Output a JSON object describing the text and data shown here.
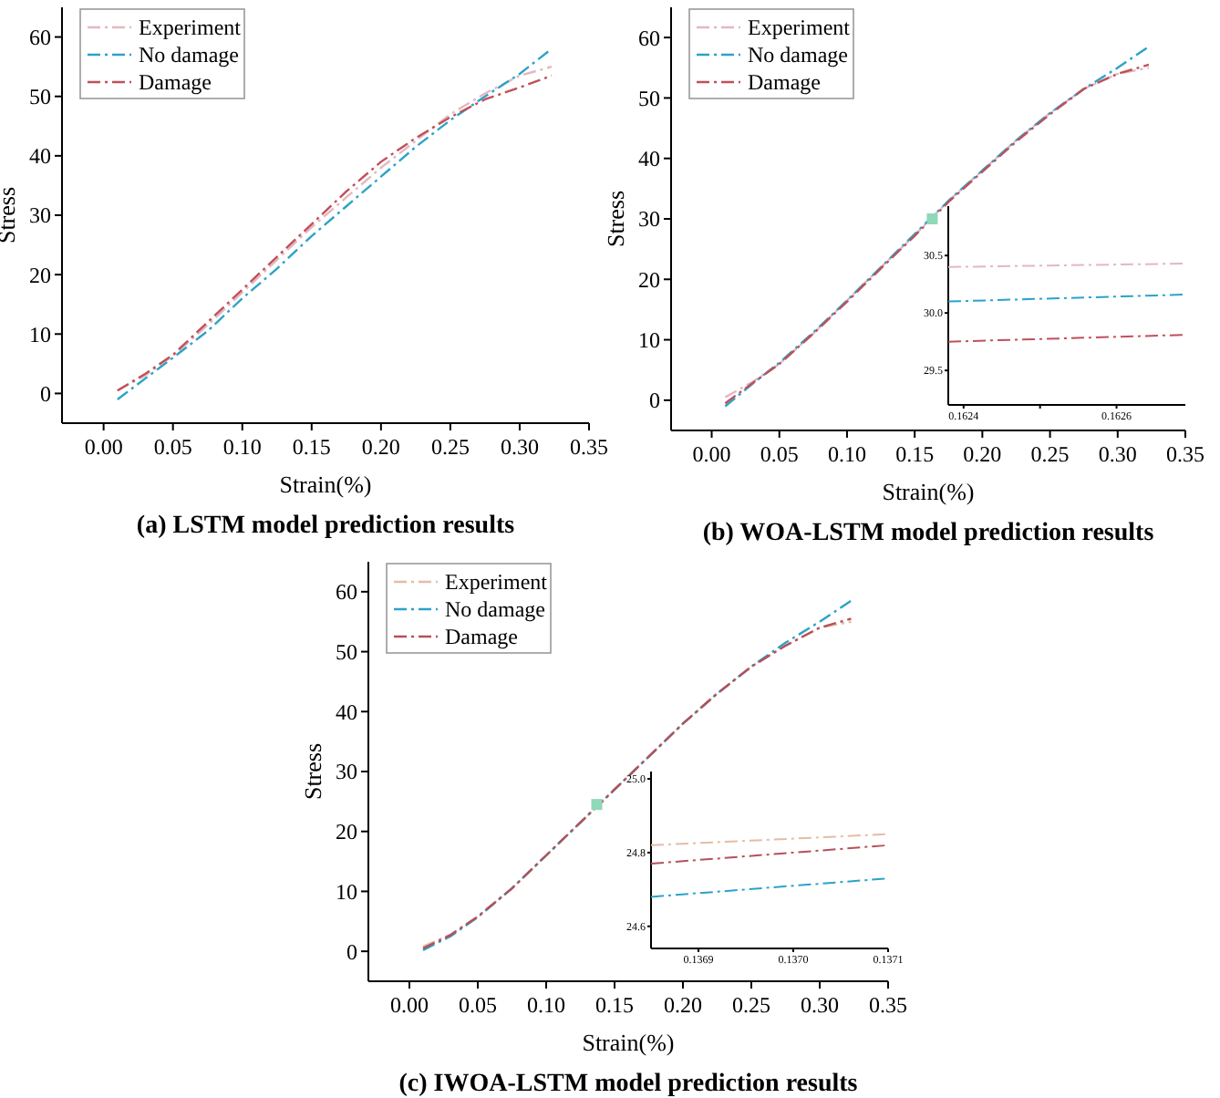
{
  "chart_data": [
    {
      "type": "line",
      "title": "(a) LSTM model prediction results",
      "xlabel": "Strain(%)",
      "ylabel": "Stress",
      "xlim": [
        -0.03,
        0.35
      ],
      "ylim": [
        -5,
        65
      ],
      "xticks": [
        {
          "value": 0,
          "label": "0.00"
        },
        {
          "value": 0.05,
          "label": "0.05"
        },
        {
          "value": 0.1,
          "label": "0.10"
        },
        {
          "value": 0.15,
          "label": "0.15"
        },
        {
          "value": 0.2,
          "label": "0.20"
        },
        {
          "value": 0.25,
          "label": "0.25"
        },
        {
          "value": 0.3,
          "label": "0.30"
        },
        {
          "value": 0.35,
          "label": "0.35"
        }
      ],
      "yticks": [
        0,
        10,
        20,
        30,
        40,
        50,
        60
      ],
      "legend": "top left",
      "line_style": "dashed",
      "grid": false,
      "x": [
        0.01,
        0.03,
        0.05,
        0.075,
        0.1,
        0.125,
        0.15,
        0.175,
        0.2,
        0.225,
        0.25,
        0.275,
        0.3,
        0.323
      ],
      "series": [
        {
          "name": "Experiment",
          "color": "#e3b8c0",
          "values": [
            0.5,
            3,
            6.3,
            11.5,
            17,
            22.5,
            28,
            33,
            38,
            42.5,
            47,
            50.5,
            53.5,
            55
          ]
        },
        {
          "name": "No damage",
          "color": "#2ba3c8",
          "values": [
            -1,
            2.5,
            6,
            10.5,
            16,
            21,
            26.5,
            31.5,
            36.5,
            41.5,
            46,
            50,
            53.8,
            58
          ]
        },
        {
          "name": "Damage",
          "color": "#c0505a",
          "values": [
            0.5,
            3.3,
            6.5,
            12,
            17.5,
            23,
            28.5,
            34,
            39,
            43,
            46.5,
            49.5,
            51.5,
            53.5
          ]
        }
      ]
    },
    {
      "type": "line",
      "title": "(b) WOA-LSTM model prediction results",
      "xlabel": "Strain(%)",
      "ylabel": "Stress",
      "xlim": [
        -0.03,
        0.35
      ],
      "ylim": [
        -5,
        65
      ],
      "xticks": [
        {
          "value": 0,
          "label": "0.00"
        },
        {
          "value": 0.05,
          "label": "0.05"
        },
        {
          "value": 0.1,
          "label": "0.10"
        },
        {
          "value": 0.15,
          "label": "0.15"
        },
        {
          "value": 0.2,
          "label": "0.20"
        },
        {
          "value": 0.25,
          "label": "0.25"
        },
        {
          "value": 0.3,
          "label": "0.30"
        },
        {
          "value": 0.35,
          "label": "0.35"
        }
      ],
      "yticks": [
        0,
        10,
        20,
        30,
        40,
        50,
        60
      ],
      "legend": "top left",
      "line_style": "dashed",
      "grid": false,
      "x": [
        0.01,
        0.03,
        0.05,
        0.075,
        0.1,
        0.125,
        0.15,
        0.175,
        0.2,
        0.225,
        0.25,
        0.275,
        0.3,
        0.323
      ],
      "series": [
        {
          "name": "Experiment",
          "color": "#e3b8c0",
          "values": [
            0.5,
            3,
            6,
            11,
            16.5,
            22,
            27.3,
            33,
            38,
            43,
            47.5,
            51.5,
            54,
            55
          ]
        },
        {
          "name": "No damage",
          "color": "#2ba3c8",
          "values": [
            -1,
            2.7,
            6.2,
            11.2,
            16.5,
            22,
            27.5,
            33,
            38,
            43,
            47.5,
            51.5,
            55,
            58.5
          ]
        },
        {
          "name": "Damage",
          "color": "#c0505a",
          "values": [
            -0.5,
            2.8,
            6,
            11,
            16.3,
            21.8,
            27.2,
            32.8,
            37.8,
            42.8,
            47.3,
            51.5,
            54,
            55.5
          ]
        }
      ]
    },
    {
      "type": "line",
      "xlim": [
        0.16238,
        0.16269
      ],
      "ylim": [
        29.2,
        30.93
      ],
      "xticks": [
        {
          "value": 0.1624,
          "label": "0.1624"
        },
        {
          "value": 0.1625,
          "label": null
        },
        {
          "value": 0.1626,
          "label": "0.1626"
        }
      ],
      "yticks": [
        29.5,
        {
          "value": 30,
          "label": "30.0"
        },
        30.5
      ],
      "line_style": "dashed",
      "grid": false,
      "x": [
        0.16238,
        0.16269
      ],
      "series": [
        {
          "color": "#e3b8c0",
          "values": [
            30.4,
            30.43
          ]
        },
        {
          "color": "#2ba3c8",
          "values": [
            30.1,
            30.16
          ]
        },
        {
          "color": "#c0505a",
          "values": [
            29.75,
            29.81
          ]
        }
      ]
    },
    {
      "type": "line",
      "title": "(c) IWOA-LSTM model prediction results",
      "xlabel": "Strain(%)",
      "ylabel": "Stress",
      "xlim": [
        -0.03,
        0.35
      ],
      "ylim": [
        -5,
        65
      ],
      "xticks": [
        {
          "value": 0,
          "label": "0.00"
        },
        {
          "value": 0.05,
          "label": "0.05"
        },
        {
          "value": 0.1,
          "label": "0.10"
        },
        {
          "value": 0.15,
          "label": "0.15"
        },
        {
          "value": 0.2,
          "label": "0.20"
        },
        {
          "value": 0.25,
          "label": "0.25"
        },
        {
          "value": 0.3,
          "label": "0.30"
        },
        {
          "value": 0.35,
          "label": "0.35"
        }
      ],
      "yticks": [
        0,
        10,
        20,
        30,
        40,
        50,
        60
      ],
      "legend": "top left",
      "line_style": "dashed",
      "grid": false,
      "x": [
        0.01,
        0.03,
        0.05,
        0.075,
        0.1,
        0.125,
        0.15,
        0.175,
        0.2,
        0.225,
        0.25,
        0.275,
        0.3,
        0.323
      ],
      "series": [
        {
          "name": "Experiment",
          "color": "#e6bba8",
          "values": [
            0.8,
            2.8,
            5.8,
            10.5,
            16,
            21.5,
            27,
            32.5,
            38,
            43,
            47.5,
            51,
            54,
            55
          ]
        },
        {
          "name": "No damage",
          "color": "#2ba3c8",
          "values": [
            0.2,
            2.5,
            5.7,
            10.5,
            16,
            21.5,
            27,
            32.5,
            38,
            43,
            47.5,
            51.5,
            55,
            58.5
          ]
        },
        {
          "name": "Damage",
          "color": "#b5505a",
          "values": [
            0.5,
            2.7,
            5.8,
            10.5,
            16,
            21.5,
            27,
            32.5,
            38,
            43,
            47.5,
            51,
            54,
            55.5
          ]
        }
      ]
    },
    {
      "type": "line",
      "xlim": [
        0.13685,
        0.1371
      ],
      "ylim": [
        24.54,
        25.02
      ],
      "xticks": [
        {
          "value": 0.1369,
          "label": "0.1369"
        },
        {
          "value": 0.137,
          "label": "0.1370"
        },
        {
          "value": 0.1371,
          "label": "0.1371"
        }
      ],
      "yticks": [
        24.6,
        24.8,
        {
          "value": 25,
          "label": "25.0"
        }
      ],
      "line_style": "dashed",
      "grid": false,
      "x": [
        0.13685,
        0.1371
      ],
      "series": [
        {
          "color": "#e6bba8",
          "values": [
            24.82,
            24.85
          ]
        },
        {
          "color": "#2ba3c8",
          "values": [
            24.68,
            24.73
          ]
        },
        {
          "color": "#b5505a",
          "values": [
            24.77,
            24.82
          ]
        }
      ]
    }
  ]
}
